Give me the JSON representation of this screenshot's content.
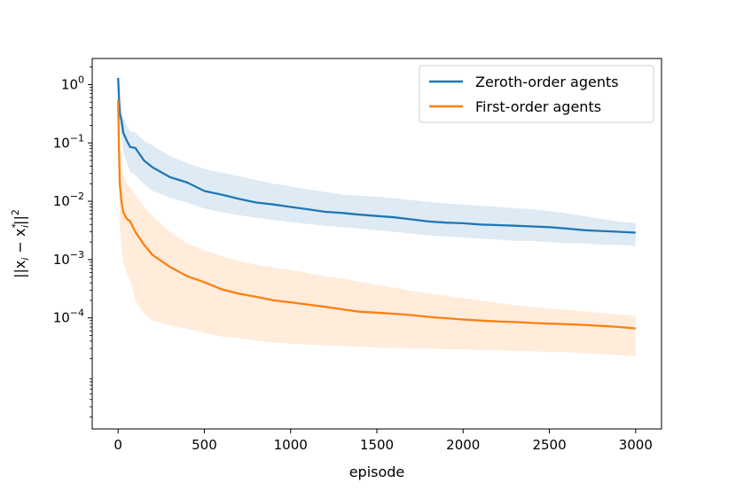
{
  "chart_data": {
    "type": "line",
    "title": "",
    "xlabel": "episode",
    "ylabel_main": "||x",
    "ylabel_sub": "i",
    "ylabel_minus": " − x",
    "ylabel_sup": "*",
    "ylabel_sub2": "i",
    "ylabel_end": "||",
    "ylabel_pow": "2",
    "x_scale": "linear",
    "y_scale": "log",
    "xlim": [
      -150,
      3150
    ],
    "ylim": [
      1.25e-06,
      2.8
    ],
    "x_ticks": [
      0,
      500,
      1000,
      1500,
      2000,
      2500,
      3000
    ],
    "x_tick_labels": [
      "0",
      "500",
      "1000",
      "1500",
      "2000",
      "2500",
      "3000"
    ],
    "y_ticks": [
      {
        "value": 1,
        "base": "10",
        "exp": "0"
      },
      {
        "value": 0.1,
        "base": "10",
        "exp": "−1"
      },
      {
        "value": 0.01,
        "base": "10",
        "exp": "−2"
      },
      {
        "value": 0.001,
        "base": "10",
        "exp": "−3"
      },
      {
        "value": 0.0001,
        "base": "10",
        "exp": "−4"
      }
    ],
    "grid": false,
    "legend_position": "top-right",
    "series": [
      {
        "name": "Zeroth-order agents",
        "color": "#1f77b4",
        "x": [
          0,
          5,
          10,
          20,
          30,
          50,
          70,
          100,
          150,
          200,
          300,
          400,
          500,
          600,
          700,
          800,
          900,
          1000,
          1100,
          1200,
          1300,
          1400,
          1500,
          1600,
          1700,
          1800,
          1900,
          2000,
          2100,
          2200,
          2300,
          2400,
          2500,
          2600,
          2700,
          2800,
          2900,
          3000
        ],
        "y": [
          1.3,
          0.6,
          0.32,
          0.24,
          0.15,
          0.11,
          0.085,
          0.082,
          0.05,
          0.038,
          0.026,
          0.021,
          0.015,
          0.013,
          0.011,
          0.0095,
          0.0088,
          0.008,
          0.0073,
          0.0066,
          0.0063,
          0.0059,
          0.0056,
          0.0053,
          0.0049,
          0.0045,
          0.0043,
          0.0042,
          0.004,
          0.0039,
          0.0038,
          0.0037,
          0.0036,
          0.0034,
          0.0032,
          0.0031,
          0.003,
          0.0029
        ],
        "lower": [
          0.9,
          0.35,
          0.18,
          0.12,
          0.07,
          0.045,
          0.032,
          0.028,
          0.02,
          0.015,
          0.0115,
          0.0095,
          0.0075,
          0.0065,
          0.0058,
          0.0052,
          0.0048,
          0.0044,
          0.0041,
          0.0038,
          0.0036,
          0.0034,
          0.0032,
          0.003,
          0.0028,
          0.0026,
          0.0025,
          0.0024,
          0.0023,
          0.0022,
          0.0021,
          0.0021,
          0.002,
          0.0019,
          0.0019,
          0.0018,
          0.0018,
          0.0017
        ],
        "upper": [
          1.5,
          0.9,
          0.5,
          0.38,
          0.28,
          0.2,
          0.16,
          0.15,
          0.11,
          0.09,
          0.06,
          0.045,
          0.036,
          0.031,
          0.027,
          0.023,
          0.02,
          0.018,
          0.016,
          0.0145,
          0.013,
          0.0125,
          0.012,
          0.0112,
          0.0105,
          0.0098,
          0.0092,
          0.0088,
          0.0083,
          0.008,
          0.0076,
          0.0073,
          0.0068,
          0.0062,
          0.0056,
          0.005,
          0.0045,
          0.0042
        ]
      },
      {
        "name": "First-order agents",
        "color": "#ff7f0e",
        "x": [
          0,
          5,
          10,
          20,
          30,
          50,
          70,
          100,
          150,
          200,
          300,
          400,
          500,
          600,
          700,
          800,
          900,
          1000,
          1100,
          1200,
          1300,
          1400,
          1500,
          1600,
          1700,
          1800,
          1900,
          2000,
          2100,
          2200,
          2300,
          2400,
          2500,
          2600,
          2700,
          2800,
          2900,
          3000
        ],
        "y": [
          0.55,
          0.08,
          0.02,
          0.0095,
          0.0065,
          0.005,
          0.0045,
          0.003,
          0.0018,
          0.0012,
          0.00075,
          0.00052,
          0.00041,
          0.00031,
          0.00026,
          0.00023,
          0.0002,
          0.000185,
          0.00017,
          0.000155,
          0.00014,
          0.000128,
          0.000123,
          0.000118,
          0.000112,
          0.000104,
          9.9e-05,
          9.4e-05,
          9e-05,
          8.7e-05,
          8.5e-05,
          8.2e-05,
          8e-05,
          7.8e-05,
          7.6e-05,
          7.3e-05,
          7e-05,
          6.6e-05
        ],
        "lower": [
          0.25,
          0.02,
          0.004,
          0.0015,
          0.0009,
          0.0006,
          0.00045,
          0.0002,
          0.00012,
          9e-05,
          7.5e-05,
          6.5e-05,
          5.5e-05,
          4.8e-05,
          4.5e-05,
          4.1e-05,
          3.8e-05,
          3.6e-05,
          3.5e-05,
          3.4e-05,
          3.3e-05,
          3.2e-05,
          3.1e-05,
          3.1e-05,
          3e-05,
          3e-05,
          2.9e-05,
          2.9e-05,
          2.8e-05,
          2.8e-05,
          2.7e-05,
          2.7e-05,
          2.6e-05,
          2.6e-05,
          2.5e-05,
          2.4e-05,
          2.3e-05,
          2.2e-05
        ],
        "upper": [
          0.7,
          0.3,
          0.1,
          0.04,
          0.03,
          0.02,
          0.017,
          0.013,
          0.008,
          0.0055,
          0.003,
          0.0019,
          0.00145,
          0.00115,
          0.00095,
          0.00082,
          0.00073,
          0.00066,
          0.00059,
          0.00052,
          0.00047,
          0.00042,
          0.00037,
          0.00033,
          0.00029,
          0.00026,
          0.00024,
          0.00022,
          0.0002,
          0.00018,
          0.000165,
          0.000155,
          0.000145,
          0.000138,
          0.00013,
          0.000122,
          0.000115,
          0.00011
        ]
      }
    ]
  }
}
